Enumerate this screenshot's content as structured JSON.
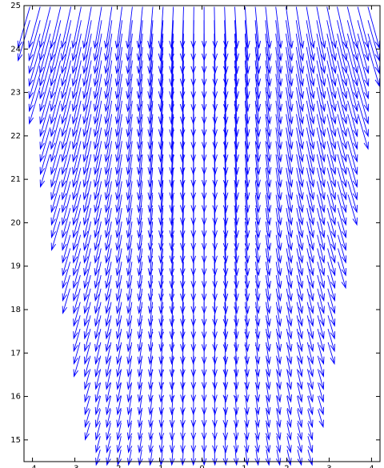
{
  "chart_data": {
    "type": "quiver",
    "title": "",
    "xlabel": "",
    "ylabel": "",
    "xlim": [
      -4.2,
      4.2
    ],
    "ylim": [
      14.5,
      25
    ],
    "x_ticks": [
      "-4",
      "-3",
      "-2",
      "-1",
      "0",
      "1",
      "2",
      "3",
      "4"
    ],
    "y_ticks": [
      "15",
      "16",
      "17",
      "18",
      "19",
      "20",
      "21",
      "22",
      "23",
      "24",
      "25"
    ],
    "arrow_color": "#0000ff",
    "grid": false,
    "field": {
      "x_range": [
        -4.2,
        4.2
      ],
      "x_spacing": 0.25,
      "y_range": [
        14.6,
        24.6
      ],
      "y_spacing": 0.3,
      "boundary_left": [
        [
          14.6,
          -2.6
        ],
        [
          24.6,
          -4.3
        ]
      ],
      "boundary_right": [
        [
          14.6,
          2.7
        ],
        [
          24.6,
          4.2
        ]
      ],
      "description_values": {
        "direction": "downward, spreading outward from x = 0",
        "length_top": 0.95,
        "length_bottom": 0.35
      }
    }
  }
}
